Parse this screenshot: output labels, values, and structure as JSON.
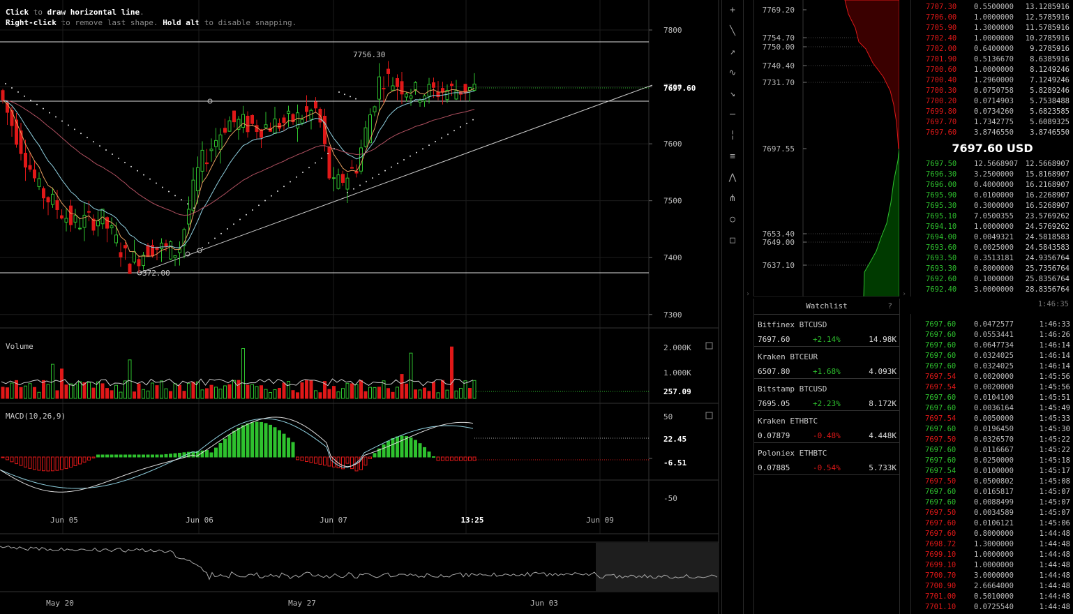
{
  "hint": {
    "l1_b": "Click",
    "l1_a": " to ",
    "l1_c": "draw horizontal line",
    "l1_d": ".",
    "l2_b": "Right-click",
    "l2_a": " to remove last shape. ",
    "l2_c": "Hold alt",
    "l2_d": " to disable snapping."
  },
  "chart": {
    "price_ticks": [
      "7800",
      "7700",
      "7600",
      "7500",
      "7400",
      "7300"
    ],
    "last_price": "7697.60",
    "high_label": "7756.30",
    "low_label": "372.00",
    "date_labels": [
      "Jun 05",
      "Jun 06",
      "Jun 07",
      "13:25",
      "Jun 09"
    ],
    "volume_label": "Volume",
    "volume_ticks": [
      "2.000K",
      "1.000K"
    ],
    "volume_last": "257.09",
    "macd_label": "MACD(10,26,9)",
    "macd_ticks": [
      "50",
      "-50"
    ],
    "macd_val1": "22.45",
    "macd_val2": "-6.51",
    "nav_dates": [
      "May 20",
      "May 27",
      "Jun 03"
    ],
    "colors": {
      "up": "#2ec12e",
      "down": "#e01818",
      "ema_fast": "#e8a060",
      "ema_slow": "#8fd0e0",
      "sma": "#b05060"
    }
  },
  "toolbar": [
    "plus-icon",
    "line-icon",
    "ray-icon",
    "curve-icon",
    "arrow-icon",
    "hline-icon",
    "vline-icon",
    "fib-icon",
    "pitchfork-icon",
    "fan-icon",
    "circle-icon",
    "rect-icon"
  ],
  "depth": {
    "labels": [
      "7769.20",
      "7754.70",
      "7750.00",
      "7740.40",
      "7731.70",
      "7697.55",
      "7653.40",
      "7649.00",
      "7637.10"
    ]
  },
  "watchlist": {
    "title": "Watchlist",
    "help": "?",
    "items": [
      {
        "name": "Bitfinex BTCUSD",
        "price": "7697.60",
        "change": "+2.14%",
        "dir": "up",
        "vol": "14.98K"
      },
      {
        "name": "Kraken BTCEUR",
        "price": "6507.80",
        "change": "+1.68%",
        "dir": "up",
        "vol": "4.093K"
      },
      {
        "name": "Bitstamp BTCUSD",
        "price": "7695.05",
        "change": "+2.23%",
        "dir": "up",
        "vol": "8.172K"
      },
      {
        "name": "Kraken ETHBTC",
        "price": "0.07879",
        "change": "-0.48%",
        "dir": "dn",
        "vol": "4.448K"
      },
      {
        "name": "Poloniex ETHBTC",
        "price": "0.07885",
        "change": "-0.54%",
        "dir": "dn",
        "vol": "5.733K"
      }
    ]
  },
  "book": {
    "mid": "7697.60 USD",
    "asks": [
      [
        "7707.30",
        "0.5500000",
        "13.1285916"
      ],
      [
        "7706.00",
        "1.0000000",
        "12.5785916"
      ],
      [
        "7705.90",
        "1.3000000",
        "11.5785916"
      ],
      [
        "7702.40",
        "1.0000000",
        "10.2785916"
      ],
      [
        "7702.00",
        "0.6400000",
        "9.2785916"
      ],
      [
        "7701.90",
        "0.5136670",
        "8.6385916"
      ],
      [
        "7700.60",
        "1.0000000",
        "8.1249246"
      ],
      [
        "7700.40",
        "1.2960000",
        "7.1249246"
      ],
      [
        "7700.30",
        "0.0750758",
        "5.8289246"
      ],
      [
        "7700.20",
        "0.0714903",
        "5.7538488"
      ],
      [
        "7699.80",
        "0.0734260",
        "5.6823585"
      ],
      [
        "7697.70",
        "1.7342775",
        "5.6089325"
      ],
      [
        "7697.60",
        "3.8746550",
        "3.8746550"
      ]
    ],
    "bids": [
      [
        "7697.50",
        "12.5668907",
        "12.5668907"
      ],
      [
        "7696.30",
        "3.2500000",
        "15.8168907"
      ],
      [
        "7696.00",
        "0.4000000",
        "16.2168907"
      ],
      [
        "7695.90",
        "0.0100000",
        "16.2268907"
      ],
      [
        "7695.30",
        "0.3000000",
        "16.5268907"
      ],
      [
        "7695.10",
        "7.0500355",
        "23.5769262"
      ],
      [
        "7694.10",
        "1.0000000",
        "24.5769262"
      ],
      [
        "7694.00",
        "0.0049321",
        "24.5818583"
      ],
      [
        "7693.60",
        "0.0025000",
        "24.5843583"
      ],
      [
        "7693.50",
        "0.3513181",
        "24.9356764"
      ],
      [
        "7693.30",
        "0.8000000",
        "25.7356764"
      ],
      [
        "7692.60",
        "0.1000000",
        "25.8356764"
      ],
      [
        "7692.40",
        "3.0000000",
        "28.8356764"
      ]
    ]
  },
  "trades": {
    "clock": "1:46:35",
    "rows": [
      [
        "7697.60",
        "0.0472577",
        "1:46:33",
        "up"
      ],
      [
        "7697.60",
        "0.0553441",
        "1:46:26",
        "up"
      ],
      [
        "7697.60",
        "0.0647734",
        "1:46:14",
        "up"
      ],
      [
        "7697.60",
        "0.0324025",
        "1:46:14",
        "up"
      ],
      [
        "7697.60",
        "0.0324025",
        "1:46:14",
        "up"
      ],
      [
        "7697.54",
        "0.0020000",
        "1:45:56",
        "dn"
      ],
      [
        "7697.54",
        "0.0020000",
        "1:45:56",
        "dn"
      ],
      [
        "7697.60",
        "0.0104100",
        "1:45:51",
        "up"
      ],
      [
        "7697.60",
        "0.0036164",
        "1:45:49",
        "up"
      ],
      [
        "7697.54",
        "0.0050000",
        "1:45:33",
        "dn"
      ],
      [
        "7697.60",
        "0.0196450",
        "1:45:30",
        "up"
      ],
      [
        "7697.50",
        "0.0326570",
        "1:45:22",
        "dn"
      ],
      [
        "7697.60",
        "0.0116667",
        "1:45:22",
        "up"
      ],
      [
        "7697.60",
        "0.0250000",
        "1:45:18",
        "up"
      ],
      [
        "7697.54",
        "0.0100000",
        "1:45:17",
        "up"
      ],
      [
        "7697.50",
        "0.0500802",
        "1:45:08",
        "dn"
      ],
      [
        "7697.60",
        "0.0165817",
        "1:45:07",
        "up"
      ],
      [
        "7697.60",
        "0.0088499",
        "1:45:07",
        "up"
      ],
      [
        "7697.50",
        "0.0034589",
        "1:45:07",
        "dn"
      ],
      [
        "7697.60",
        "0.0106121",
        "1:45:06",
        "dn"
      ],
      [
        "7697.60",
        "0.8000000",
        "1:44:48",
        "dn"
      ],
      [
        "7698.72",
        "1.3000000",
        "1:44:48",
        "dn"
      ],
      [
        "7699.10",
        "1.0000000",
        "1:44:48",
        "dn"
      ],
      [
        "7699.10",
        "1.0000000",
        "1:44:48",
        "dn"
      ],
      [
        "7700.70",
        "3.0000000",
        "1:44:48",
        "dn"
      ],
      [
        "7700.90",
        "2.6664000",
        "1:44:48",
        "dn"
      ],
      [
        "7701.00",
        "0.5010000",
        "1:44:48",
        "dn"
      ],
      [
        "7701.10",
        "0.0725540",
        "1:44:48",
        "dn"
      ]
    ]
  }
}
